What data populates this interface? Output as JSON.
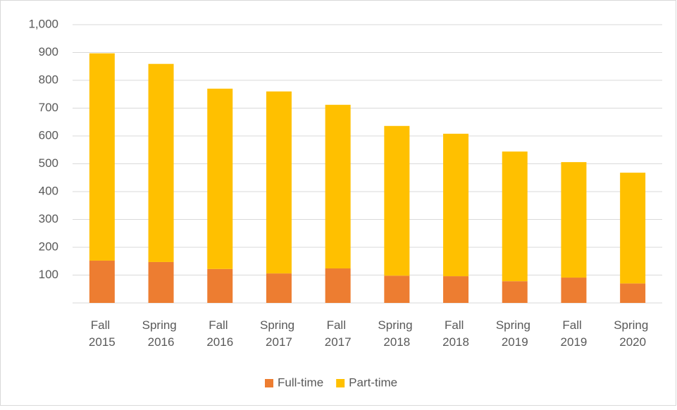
{
  "chart_data": {
    "type": "stacked_bar",
    "categories": [
      "Fall 2015",
      "Spring 2016",
      "Fall 2016",
      "Spring 2017",
      "Fall 2017",
      "Spring 2018",
      "Fall 2018",
      "Spring 2019",
      "Fall 2019",
      "Spring 2020"
    ],
    "series": [
      {
        "name": "Full-time",
        "color": "#ed7d31",
        "values": [
          152,
          147,
          122,
          106,
          124,
          98,
          96,
          78,
          91,
          70
        ]
      },
      {
        "name": "Part-time",
        "color": "#ffc000",
        "values": [
          745,
          712,
          648,
          654,
          588,
          538,
          512,
          466,
          415,
          398
        ]
      }
    ],
    "ylim": [
      0,
      1000
    ],
    "yticks": [
      100,
      200,
      300,
      400,
      500,
      600,
      700,
      800,
      900,
      {
        "value": 1000,
        "label": "1,000"
      }
    ],
    "grid": true,
    "legend": "bottom"
  }
}
